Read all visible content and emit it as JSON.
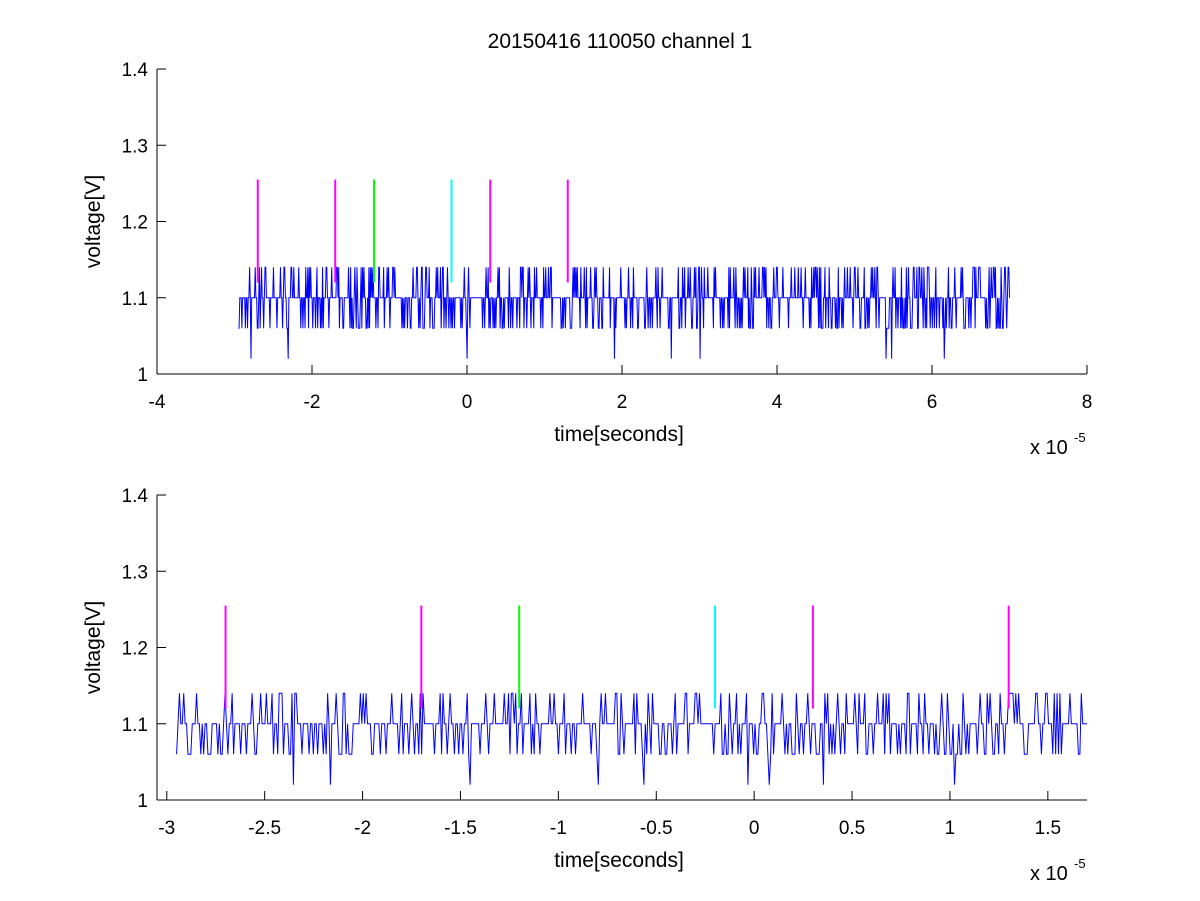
{
  "chart_data": [
    {
      "type": "line",
      "title": "20150416 110050 channel 1",
      "xlabel": "time[seconds]",
      "ylabel": "voltage[V]",
      "x_exponent_label": "x 10",
      "x_exponent": "-5",
      "xlim": [
        -4e-05,
        8e-05
      ],
      "ylim": [
        1.0,
        1.4
      ],
      "xticks": [
        -4e-05,
        -2e-05,
        0,
        2e-05,
        4e-05,
        6e-05,
        8e-05
      ],
      "xtick_labels": [
        "-4",
        "-2",
        "0",
        "2",
        "4",
        "6",
        "8"
      ],
      "yticks": [
        1.0,
        1.1,
        1.2,
        1.3,
        1.4
      ],
      "ytick_labels": [
        "1",
        "1.1",
        "1.2",
        "1.3",
        "1.4"
      ],
      "grid": false,
      "series": [
        {
          "color": "#0000ff",
          "x_range": [
            -2.95e-05,
            7e-05
          ],
          "baseline": 1.1,
          "levels": [
            1.02,
            1.06,
            1.1,
            1.14
          ],
          "description_values": "noisy trace quantized at 0.04 V steps around 1.10 V"
        }
      ],
      "markers": [
        {
          "x": -2.7e-05,
          "color": "#ff00ff",
          "y_range": [
            1.12,
            1.255
          ]
        },
        {
          "x": -1.7e-05,
          "color": "#ff00ff",
          "y_range": [
            1.12,
            1.255
          ]
        },
        {
          "x": -1.2e-05,
          "color": "#00ff00",
          "y_range": [
            1.12,
            1.255
          ]
        },
        {
          "x": -2e-06,
          "color": "#00ffff",
          "y_range": [
            1.12,
            1.255
          ]
        },
        {
          "x": 3e-06,
          "color": "#ff00ff",
          "y_range": [
            1.12,
            1.255
          ]
        },
        {
          "x": 1.3e-05,
          "color": "#ff00ff",
          "y_range": [
            1.12,
            1.255
          ]
        }
      ]
    },
    {
      "type": "line",
      "title": "",
      "xlabel": "time[seconds]",
      "ylabel": "voltage[V]",
      "x_exponent_label": "x 10",
      "x_exponent": "-5",
      "xlim": [
        -3.05e-05,
        1.7e-05
      ],
      "ylim": [
        1.0,
        1.4
      ],
      "xticks": [
        -3e-05,
        -2.5e-05,
        -2e-05,
        -1.5e-05,
        -1e-05,
        -5e-06,
        0,
        5e-06,
        1e-05,
        1.5e-05
      ],
      "xtick_labels": [
        "-3",
        "-2.5",
        "-2",
        "-1.5",
        "-1",
        "-0.5",
        "0",
        "0.5",
        "1",
        "1.5"
      ],
      "yticks": [
        1.0,
        1.1,
        1.2,
        1.3,
        1.4
      ],
      "ytick_labels": [
        "1",
        "1.1",
        "1.2",
        "1.3",
        "1.4"
      ],
      "grid": false,
      "series": [
        {
          "color": "#0000ff",
          "x_range": [
            -2.95e-05,
            1.7e-05
          ],
          "baseline": 1.1,
          "levels": [
            1.02,
            1.06,
            1.1,
            1.14
          ]
        }
      ],
      "markers": [
        {
          "x": -2.7e-05,
          "color": "#ff00ff",
          "y_range": [
            1.12,
            1.255
          ]
        },
        {
          "x": -1.7e-05,
          "color": "#ff00ff",
          "y_range": [
            1.12,
            1.255
          ]
        },
        {
          "x": -1.2e-05,
          "color": "#00ff00",
          "y_range": [
            1.12,
            1.255
          ]
        },
        {
          "x": -2e-06,
          "color": "#00ffff",
          "y_range": [
            1.12,
            1.255
          ]
        },
        {
          "x": 3e-06,
          "color": "#ff00ff",
          "y_range": [
            1.12,
            1.255
          ]
        },
        {
          "x": 1.3e-05,
          "color": "#ff00ff",
          "y_range": [
            1.12,
            1.255
          ]
        }
      ]
    }
  ]
}
